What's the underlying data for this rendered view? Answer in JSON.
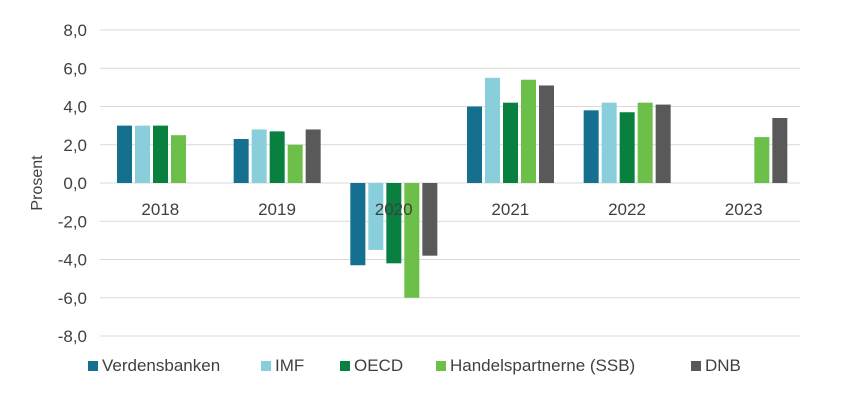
{
  "chart_data": {
    "type": "bar",
    "categories": [
      "2018",
      "2019",
      "2020",
      "2021",
      "2022",
      "2023"
    ],
    "ylabel": "Prosent",
    "ylim": [
      -8,
      8
    ],
    "yticks": [
      "8,0",
      "6,0",
      "4,0",
      "2,0",
      "0,0",
      "-2,0",
      "-4,0",
      "-6,0",
      "-8,0"
    ],
    "grid": true,
    "legend_position": "bottom",
    "series": [
      {
        "name": "Verdensbanken",
        "color": "#156f8f",
        "values": [
          3.0,
          2.3,
          -4.3,
          4.0,
          3.8,
          null
        ]
      },
      {
        "name": "IMF",
        "color": "#89cfdb",
        "values": [
          3.0,
          2.8,
          -3.5,
          5.5,
          4.2,
          null
        ]
      },
      {
        "name": "OECD",
        "color": "#0a8040",
        "values": [
          3.0,
          2.7,
          -4.2,
          4.2,
          3.7,
          null
        ]
      },
      {
        "name": "Handelspartnerne (SSB)",
        "color": "#6cc04a",
        "values": [
          2.5,
          2.0,
          -6.0,
          5.4,
          4.2,
          2.4
        ]
      },
      {
        "name": "DNB",
        "color": "#595959",
        "values": [
          null,
          2.8,
          -3.8,
          5.1,
          4.1,
          3.4
        ]
      }
    ]
  }
}
